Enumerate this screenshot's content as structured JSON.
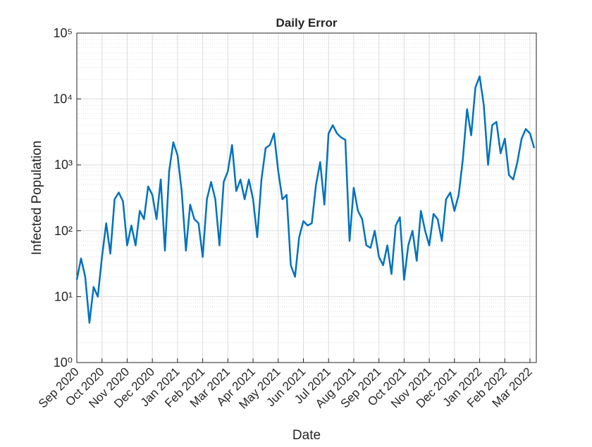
{
  "chart_data": {
    "type": "line",
    "title": "Daily Error",
    "xlabel": "Date",
    "ylabel": "Infected Population",
    "yscale": "log",
    "grid": true,
    "minor_grid": true,
    "ylim": [
      1,
      100000
    ],
    "yticks": [
      {
        "value": 1,
        "label": "10⁰"
      },
      {
        "value": 10,
        "label": "10¹"
      },
      {
        "value": 100,
        "label": "10²"
      },
      {
        "value": 1000,
        "label": "10³"
      },
      {
        "value": 10000,
        "label": "10⁴"
      },
      {
        "value": 100000,
        "label": "10⁵"
      }
    ],
    "categories": [
      "Sep 2020",
      null,
      null,
      null,
      null,
      null,
      "Oct 2020",
      null,
      null,
      null,
      null,
      null,
      "Nov 2020",
      null,
      null,
      null,
      null,
      null,
      "Dec 2020",
      null,
      null,
      null,
      null,
      null,
      "Jan 2021",
      null,
      null,
      null,
      null,
      null,
      "Feb 2021",
      null,
      null,
      null,
      null,
      null,
      "Mar 2021",
      null,
      null,
      null,
      null,
      null,
      "Apr 2021",
      null,
      null,
      null,
      null,
      null,
      "May 2021",
      null,
      null,
      null,
      null,
      null,
      "Jun 2021",
      null,
      null,
      null,
      null,
      null,
      "Jul 2021",
      null,
      null,
      null,
      null,
      null,
      "Aug 2021",
      null,
      null,
      null,
      null,
      null,
      "Sep 2021",
      null,
      null,
      null,
      null,
      null,
      "Oct 2021",
      null,
      null,
      null,
      null,
      null,
      "Nov 2021",
      null,
      null,
      null,
      null,
      null,
      "Dec 2021",
      null,
      null,
      null,
      null,
      null,
      "Jan 2022",
      null,
      null,
      null,
      null,
      null,
      "Feb 2022",
      null,
      null,
      null,
      null,
      null,
      "Mar 2022",
      null
    ],
    "series": [
      {
        "name": "Daily Error",
        "color": "#0072bd",
        "values": [
          18,
          38,
          20,
          4,
          14,
          10,
          40,
          130,
          45,
          300,
          380,
          280,
          60,
          120,
          60,
          200,
          150,
          470,
          350,
          150,
          600,
          50,
          800,
          2200,
          1400,
          400,
          50,
          250,
          150,
          130,
          40,
          300,
          550,
          300,
          60,
          550,
          800,
          2000,
          400,
          600,
          300,
          600,
          300,
          80,
          600,
          1800,
          2000,
          3000,
          800,
          300,
          350,
          30,
          20,
          80,
          140,
          120,
          130,
          500,
          1100,
          250,
          3000,
          4000,
          3000,
          2600,
          2400,
          70,
          450,
          200,
          150,
          60,
          55,
          100,
          40,
          30,
          60,
          22,
          120,
          160,
          18,
          60,
          100,
          35,
          200,
          100,
          60,
          180,
          150,
          70,
          300,
          380,
          200,
          350,
          1200,
          7000,
          2800,
          15000,
          22000,
          8000,
          1000,
          4000,
          4500,
          1500,
          2500,
          700,
          600,
          1100,
          2500,
          3500,
          3000,
          1800
        ]
      }
    ]
  }
}
